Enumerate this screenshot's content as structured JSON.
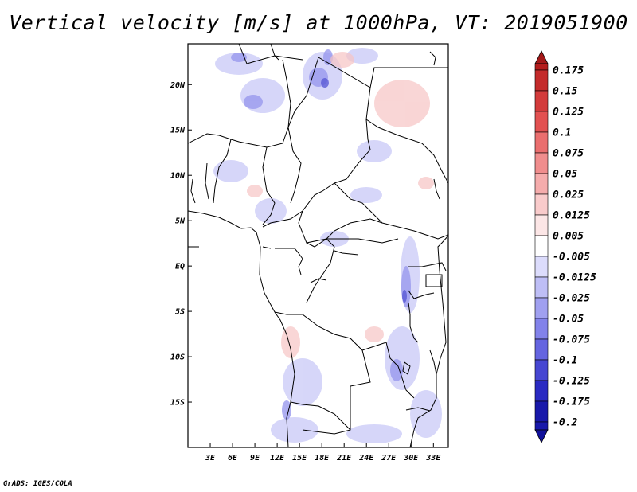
{
  "title": "Vertical velocity [m/s] at 1000hPa, VT: 2019051900",
  "credit": "GrADS: IGES/COLA",
  "map": {
    "lon_range": [
      0,
      35
    ],
    "lat_range": [
      -20,
      24.5
    ],
    "lat_ticks": [
      {
        "value": 20,
        "label": "20N"
      },
      {
        "value": 15,
        "label": "15N"
      },
      {
        "value": 10,
        "label": "10N"
      },
      {
        "value": 5,
        "label": "5N"
      },
      {
        "value": 0,
        "label": "EQ"
      },
      {
        "value": -5,
        "label": "5S"
      },
      {
        "value": -10,
        "label": "10S"
      },
      {
        "value": -15,
        "label": "15S"
      }
    ],
    "lon_ticks": [
      {
        "value": 3,
        "label": "3E"
      },
      {
        "value": 6,
        "label": "6E"
      },
      {
        "value": 9,
        "label": "9E"
      },
      {
        "value": 12,
        "label": "12E"
      },
      {
        "value": 15,
        "label": "15E"
      },
      {
        "value": 18,
        "label": "18E"
      },
      {
        "value": 21,
        "label": "21E"
      },
      {
        "value": 24,
        "label": "24E"
      },
      {
        "value": 27,
        "label": "27E"
      },
      {
        "value": 30,
        "label": "30E"
      },
      {
        "value": 33,
        "label": "33E"
      }
    ]
  },
  "colorbar": {
    "levels": [
      {
        "label": "0.175",
        "color": "#b41c1c"
      },
      {
        "label": "0.15",
        "color": "#c42b2b"
      },
      {
        "label": "0.125",
        "color": "#d33b3b"
      },
      {
        "label": "0.1",
        "color": "#e25151"
      },
      {
        "label": "0.075",
        "color": "#ea6e6e"
      },
      {
        "label": "0.05",
        "color": "#f08d8d"
      },
      {
        "label": "0.025",
        "color": "#f5acac"
      },
      {
        "label": "0.0125",
        "color": "#f9cbcb"
      },
      {
        "label": "0.005",
        "color": "#fce6e6"
      },
      {
        "label": "-0.005",
        "color": "#ffffff"
      },
      {
        "label": "-0.0125",
        "color": "#dcdcfc"
      },
      {
        "label": "-0.025",
        "color": "#bebef6"
      },
      {
        "label": "-0.05",
        "color": "#a0a0f0"
      },
      {
        "label": "-0.075",
        "color": "#8282ea"
      },
      {
        "label": "-0.1",
        "color": "#6464e0"
      },
      {
        "label": "-0.125",
        "color": "#4646d2"
      },
      {
        "label": "-0.175",
        "color": "#2a2ac2"
      },
      {
        "label": "-0.2",
        "color": "#1818aa"
      }
    ],
    "top_arrow_color": "#a31818",
    "bottom_arrow_color": "#10109a",
    "mid_color": "#ffffff"
  }
}
